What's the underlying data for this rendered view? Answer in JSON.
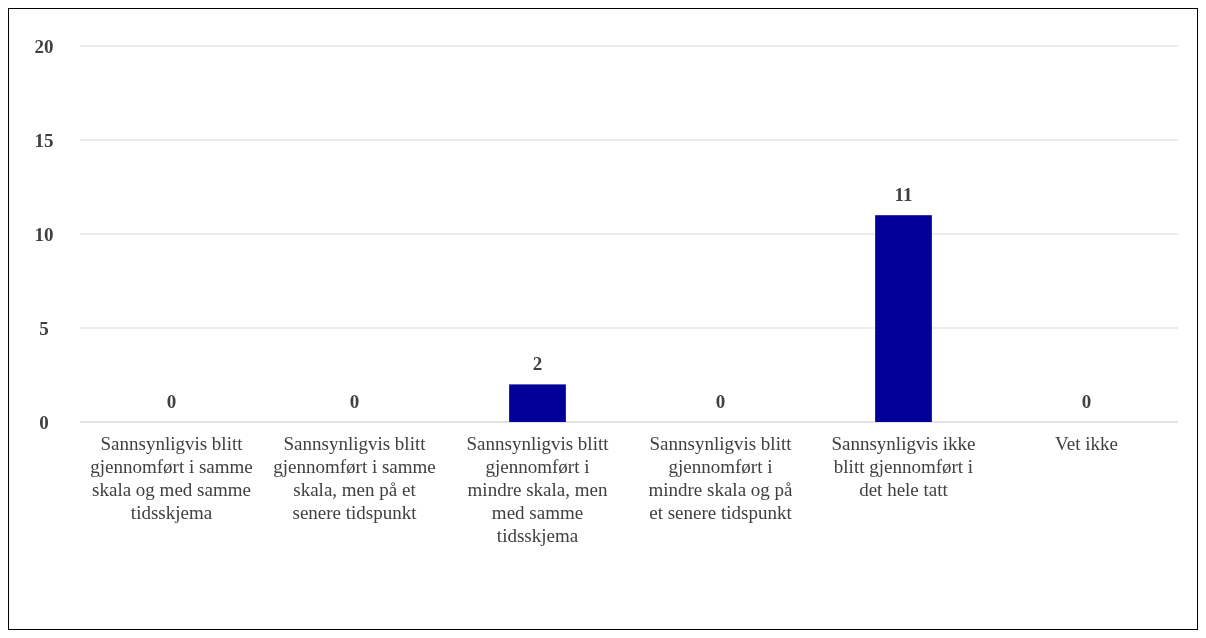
{
  "chart_data": {
    "type": "bar",
    "categories": [
      "Sannsynligvis blitt gjennomført i samme skala og med samme tidsskjema",
      "Sannsynligvis blitt gjennomført i samme skala, men på et senere tidspunkt",
      "Sannsynligvis blitt gjennomført i mindre skala, men med samme tidsskjema",
      "Sannsynligvis blitt gjennomført i mindre skala og på et senere tidspunkt",
      "Sannsynligvis ikke blitt gjennomført i det hele tatt",
      "Vet ikke"
    ],
    "values": [
      0,
      0,
      2,
      0,
      11,
      0
    ],
    "color": "#000099",
    "ylim": [
      0,
      20
    ],
    "yticks": [
      0,
      5,
      10,
      15,
      20
    ],
    "grid": "y",
    "data_labels": true
  }
}
